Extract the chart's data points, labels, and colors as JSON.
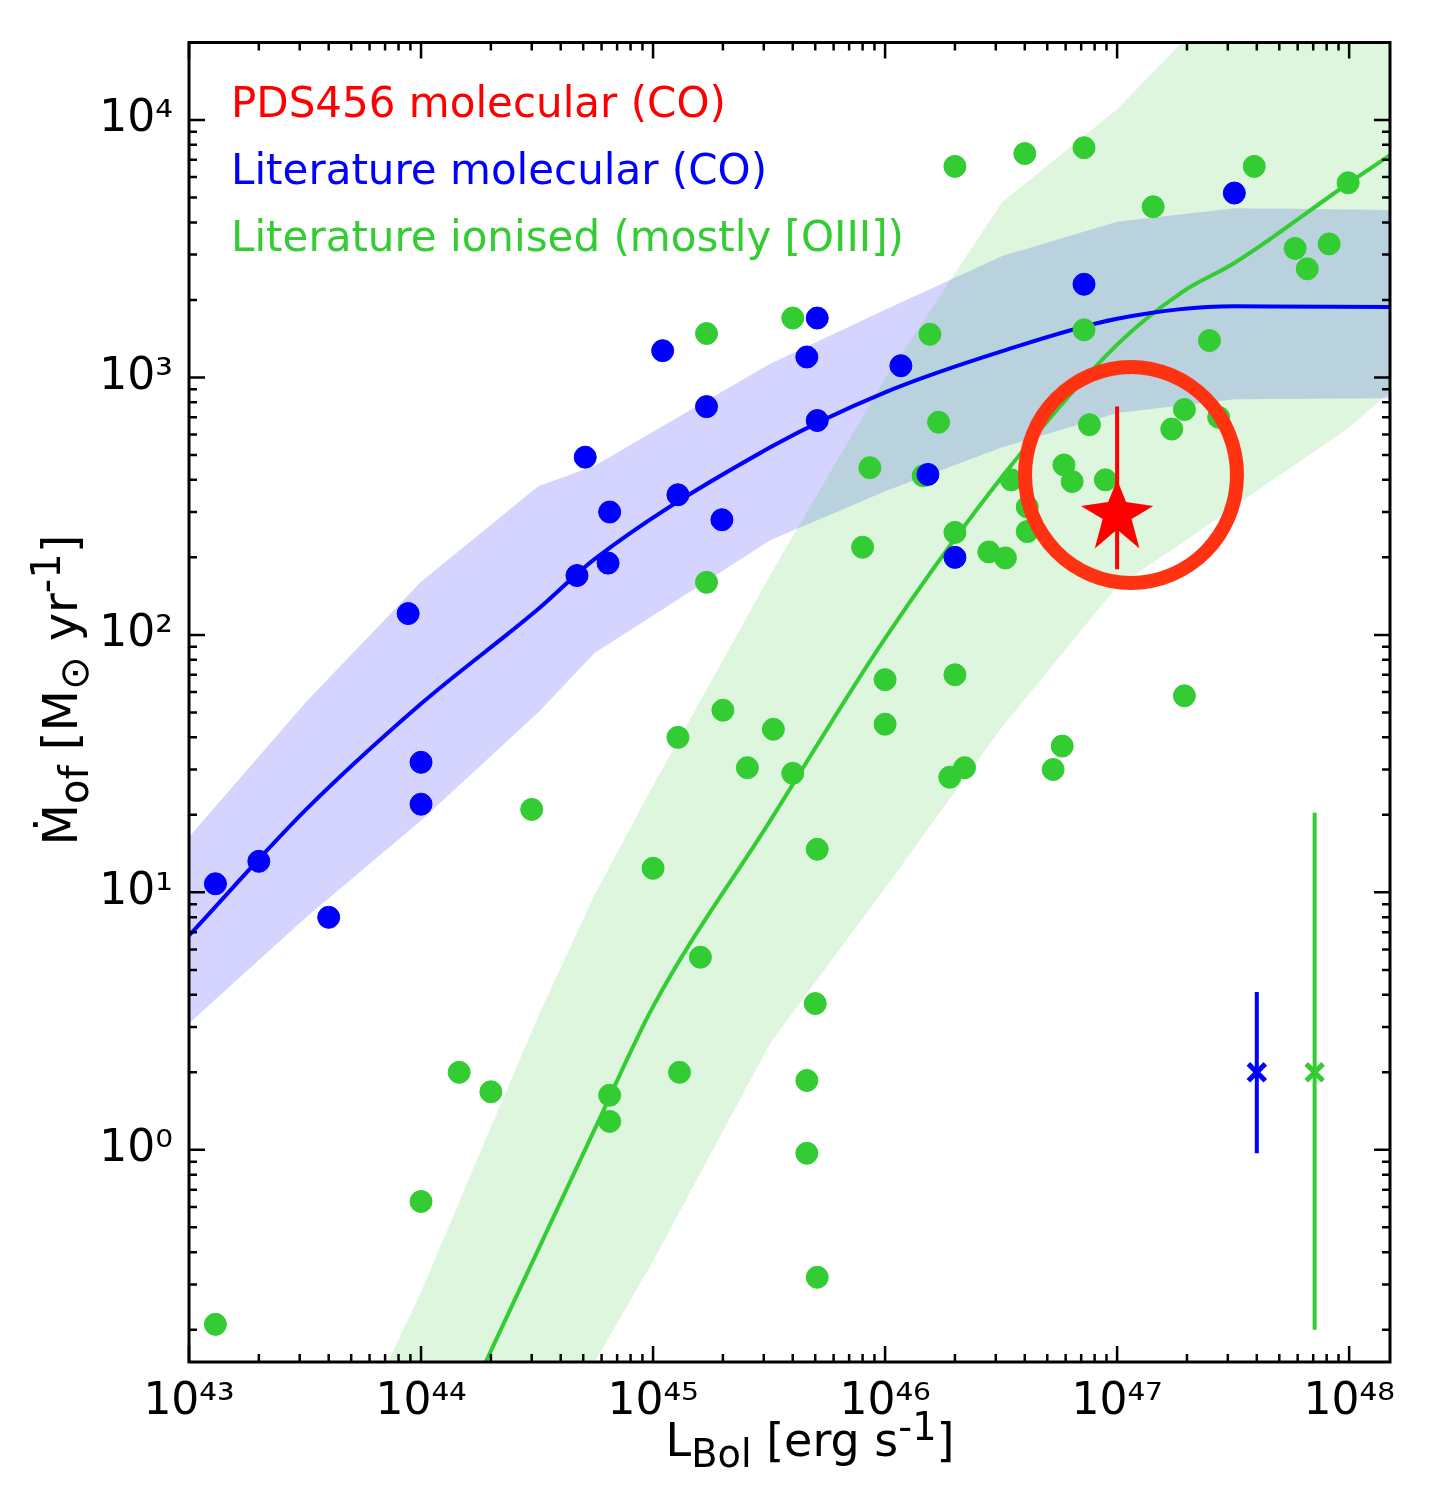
{
  "chart_data": {
    "type": "scatter",
    "log": "xy",
    "grid": false,
    "legend": "top left",
    "xlabel": "L$_{Bol}$ [erg s$^{-1}$]",
    "ylabel": "Ṁ$_{of}$ [M$_{⊙}$ yr$^{-1}$]",
    "xlim": [
      1e+43,
      1.5e+48
    ],
    "ylim": [
      0.15,
      20000
    ],
    "xticks": [
      {
        "value": 1e+43,
        "label": "10⁴³"
      },
      {
        "value": 2e+43,
        "label": null
      },
      {
        "value": 3e+43,
        "label": null
      },
      {
        "value": 4e+43,
        "label": null
      },
      {
        "value": 5e+43,
        "label": null
      },
      {
        "value": 6e+43,
        "label": null
      },
      {
        "value": 7e+43,
        "label": null
      },
      {
        "value": 8e+43,
        "label": null
      },
      {
        "value": 9e+43,
        "label": null
      },
      {
        "value": 1e+44,
        "label": "10⁴⁴"
      },
      {
        "value": 2e+44,
        "label": null
      },
      {
        "value": 3e+44,
        "label": null
      },
      {
        "value": 4e+44,
        "label": null
      },
      {
        "value": 5e+44,
        "label": null
      },
      {
        "value": 6e+44,
        "label": null
      },
      {
        "value": 7e+44,
        "label": null
      },
      {
        "value": 8e+44,
        "label": null
      },
      {
        "value": 9e+44,
        "label": null
      },
      {
        "value": 1e+45,
        "label": "10⁴⁵"
      },
      {
        "value": 2e+45,
        "label": null
      },
      {
        "value": 3e+45,
        "label": null
      },
      {
        "value": 4e+45,
        "label": null
      },
      {
        "value": 5e+45,
        "label": null
      },
      {
        "value": 6e+45,
        "label": null
      },
      {
        "value": 7e+45,
        "label": null
      },
      {
        "value": 8e+45,
        "label": null
      },
      {
        "value": 9e+45,
        "label": null
      },
      {
        "value": 1e+46,
        "label": "10⁴⁶"
      },
      {
        "value": 2e+46,
        "label": null
      },
      {
        "value": 3e+46,
        "label": null
      },
      {
        "value": 4e+46,
        "label": null
      },
      {
        "value": 5e+46,
        "label": null
      },
      {
        "value": 6e+46,
        "label": null
      },
      {
        "value": 7e+46,
        "label": null
      },
      {
        "value": 8e+46,
        "label": null
      },
      {
        "value": 9e+46,
        "label": null
      },
      {
        "value": 1e+47,
        "label": "10⁴⁷"
      },
      {
        "value": 2e+47,
        "label": null
      },
      {
        "value": 3e+47,
        "label": null
      },
      {
        "value": 4e+47,
        "label": null
      },
      {
        "value": 5e+47,
        "label": null
      },
      {
        "value": 6e+47,
        "label": null
      },
      {
        "value": 7e+47,
        "label": null
      },
      {
        "value": 8e+47,
        "label": null
      },
      {
        "value": 9e+47,
        "label": null
      },
      {
        "value": 1e+48,
        "label": "10⁴⁸"
      }
    ],
    "yticks": [
      {
        "value": 0.2,
        "label": null
      },
      {
        "value": 0.3,
        "label": null
      },
      {
        "value": 0.4,
        "label": null
      },
      {
        "value": 0.5,
        "label": null
      },
      {
        "value": 0.6,
        "label": null
      },
      {
        "value": 0.7,
        "label": null
      },
      {
        "value": 0.8,
        "label": null
      },
      {
        "value": 0.9,
        "label": null
      },
      {
        "value": 1,
        "label": "10⁰"
      },
      {
        "value": 2,
        "label": null
      },
      {
        "value": 3,
        "label": null
      },
      {
        "value": 4,
        "label": null
      },
      {
        "value": 5,
        "label": null
      },
      {
        "value": 6,
        "label": null
      },
      {
        "value": 7,
        "label": null
      },
      {
        "value": 8,
        "label": null
      },
      {
        "value": 9,
        "label": null
      },
      {
        "value": 10,
        "label": "10¹"
      },
      {
        "value": 20,
        "label": null
      },
      {
        "value": 30,
        "label": null
      },
      {
        "value": 40,
        "label": null
      },
      {
        "value": 50,
        "label": null
      },
      {
        "value": 60,
        "label": null
      },
      {
        "value": 70,
        "label": null
      },
      {
        "value": 80,
        "label": null
      },
      {
        "value": 90,
        "label": null
      },
      {
        "value": 100,
        "label": "10²"
      },
      {
        "value": 200,
        "label": null
      },
      {
        "value": 300,
        "label": null
      },
      {
        "value": 400,
        "label": null
      },
      {
        "value": 500,
        "label": null
      },
      {
        "value": 600,
        "label": null
      },
      {
        "value": 700,
        "label": null
      },
      {
        "value": 800,
        "label": null
      },
      {
        "value": 900,
        "label": null
      },
      {
        "value": 1000,
        "label": "10³"
      },
      {
        "value": 2000,
        "label": null
      },
      {
        "value": 3000,
        "label": null
      },
      {
        "value": 4000,
        "label": null
      },
      {
        "value": 5000,
        "label": null
      },
      {
        "value": 6000,
        "label": null
      },
      {
        "value": 7000,
        "label": null
      },
      {
        "value": 8000,
        "label": null
      },
      {
        "value": 9000,
        "label": null
      },
      {
        "value": 10000,
        "label": "10⁴"
      }
    ],
    "series": [
      {
        "name": "PDS456 molecular (CO)",
        "marker": "star",
        "color": "#ff0000",
        "x": [
          1e+47
        ],
        "values": [
          300
        ],
        "errors": [
          [
            180,
            770
          ]
        ]
      },
      {
        "name": "Literature molecular (CO)",
        "marker": "circle",
        "color": "#0000ff",
        "x": [
          1.3e+43,
          2e+43,
          4e+43,
          8.8e+43,
          1e+44,
          1e+44,
          4.7e+44,
          5.1e+44,
          6.5e+44,
          6.4e+44,
          1.1e+45,
          1.28e+45,
          1.7e+45,
          1.98e+45,
          4.6e+45,
          5.1e+45,
          5.1e+45,
          1.17e+46,
          1.53e+46,
          2e+46,
          7.2e+46,
          3.2e+47
        ],
        "values": [
          10.8,
          13.2,
          8.0,
          121,
          32,
          22,
          170,
          490,
          300,
          190,
          1270,
          350,
          770,
          280,
          1200,
          1700,
          680,
          1110,
          420,
          200,
          2300,
          5200
        ]
      },
      {
        "name": "Literature ionised (mostly [OIII])",
        "marker": "circle",
        "color": "#33cc33",
        "x": [
          1.3e+43,
          1e+44,
          1.46e+44,
          2e+44,
          3e+44,
          6.5e+44,
          6.5e+44,
          1e+45,
          1.28e+45,
          1.3e+45,
          1.7e+45,
          1.7e+45,
          1.6e+45,
          2e+45,
          2.55e+45,
          3.3e+45,
          4e+45,
          4e+45,
          4.6e+45,
          4.6e+45,
          5e+45,
          5.1e+45,
          5.1e+45,
          8e+45,
          8.6e+45,
          1e+46,
          1e+46,
          1.46e+46,
          1.56e+46,
          1.7e+46,
          1.9e+46,
          2e+46,
          2e+46,
          2e+46,
          2.2e+46,
          2.8e+46,
          3.3e+46,
          3.5e+46,
          4e+46,
          4.1e+46,
          4.1e+46,
          5.3e+46,
          5.8e+46,
          5.9e+46,
          6.4e+46,
          7.2e+46,
          7.2e+46,
          7.6e+46,
          8.9e+46,
          1.43e+47,
          1.72e+47,
          1.95e+47,
          1.95e+47,
          2.5e+47,
          2.74e+47,
          3.9e+47,
          5.85e+47,
          6.6e+47,
          8.2e+47,
          9.9e+47
        ],
        "values": [
          0.21,
          0.63,
          2.0,
          1.68,
          21,
          1.63,
          1.29,
          12.4,
          40,
          2.0,
          1480,
          160,
          5.6,
          51,
          30.5,
          43,
          1700,
          29,
          1.86,
          0.97,
          3.7,
          14.7,
          0.32,
          219,
          446,
          67,
          45,
          415,
          1470,
          670,
          28,
          6600,
          250,
          70,
          30.5,
          210,
          199,
          400,
          7400,
          314,
          252,
          30,
          37,
          457,
          394,
          7800,
          1530,
          655,
          400,
          4600,
          630,
          750,
          58,
          1390,
          700,
          6600,
          3170,
          2640,
          3300,
          5700
        ]
      },
      {
        "marker": "cross",
        "color": "#0000ff",
        "x": [
          4e+47
        ],
        "values": [
          2.0
        ],
        "errors": [
          [
            0.97,
            4.1
          ]
        ]
      },
      {
        "marker": "cross",
        "color": "#33cc33",
        "x": [
          7.1e+47
        ],
        "values": [
          2.0
        ],
        "errors": [
          [
            0.2,
            20.4
          ]
        ]
      },
      {
        "type": "line",
        "marker": "none",
        "line_style": "solid",
        "color": "#0000ff",
        "x": [
          1e+43,
          3.2e+43,
          1e+44,
          3.2e+44,
          5.6e+44,
          3.2e+45,
          1e+46,
          3.2e+46,
          1e+47,
          3.2e+47,
          1.5e+48
        ],
        "values": [
          6.8,
          21,
          54,
          126,
          197,
          535,
          875,
          1265,
          1690,
          1890,
          1875
        ],
        "lower": [
          3.1,
          8,
          19,
          50,
          85,
          233,
          361,
          535,
          728,
          822,
          830
        ],
        "upper": [
          16.4,
          55,
          161,
          378,
          454,
          1130,
          1830,
          2960,
          4020,
          4540,
          4470
        ]
      },
      {
        "type": "line",
        "marker": "none",
        "line_style": "solid",
        "color": "#33cc33",
        "x": [
          7.2e+43,
          1e+44,
          1.9e+44,
          3.2e+44,
          5.6e+44,
          1e+45,
          3.2e+45,
          1e+46,
          3.2e+46,
          1e+47,
          1.9e+47,
          3.2e+47,
          1e+48,
          1.5e+48
        ],
        "values": [
          null,
          null,
          0.15,
          0.41,
          1.2,
          3.6,
          19,
          97,
          412,
          1340,
          2140,
          2780,
          5700,
          7300
        ],
        "lower": [
          0.15,
          0.15,
          0.15,
          0.15,
          0.15,
          0.37,
          2.6,
          10.4,
          44,
          154,
          227,
          316,
          638,
          880
        ],
        "upper": [
          0.15,
          0.28,
          1.1,
          3.3,
          9.8,
          26,
          171,
          990,
          4800,
          11000,
          20000,
          20000,
          20000,
          20000
        ]
      }
    ]
  }
}
